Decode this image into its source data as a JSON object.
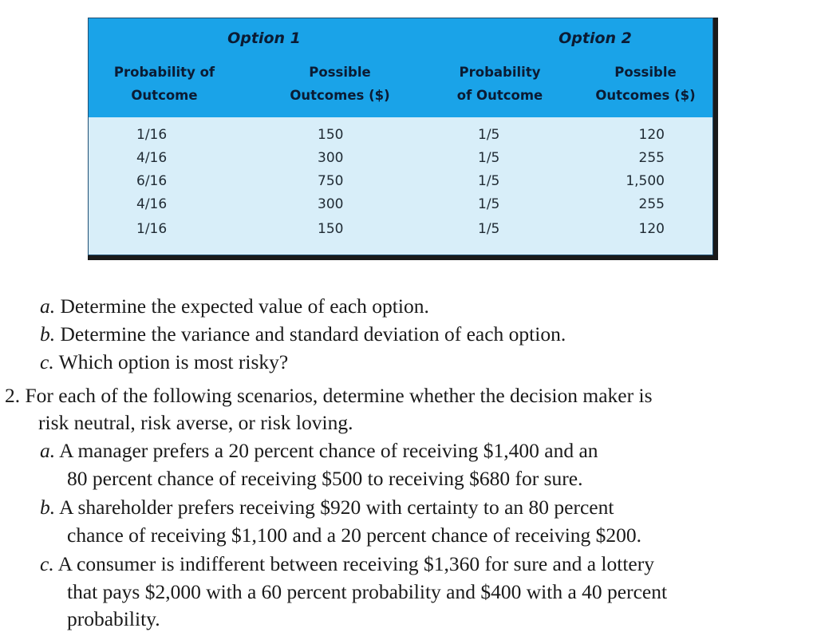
{
  "table": {
    "option1_title": "Option 1",
    "option2_title": "Option 2",
    "headers": {
      "col1": [
        "Probability of",
        "Outcome"
      ],
      "col2": [
        "Possible",
        "Outcomes ($)"
      ],
      "col3": [
        "Probability",
        "of Outcome"
      ],
      "col4": [
        "Possible",
        "Outcomes ($)"
      ]
    },
    "rows": [
      [
        "1/16",
        "150",
        "1/5",
        "120"
      ],
      [
        "4/16",
        "300",
        "1/5",
        "255"
      ],
      [
        "6/16",
        "750",
        "1/5",
        "1,500"
      ],
      [
        "4/16",
        "300",
        "1/5",
        "255"
      ],
      [
        "1/16",
        "150",
        "1/5",
        "120"
      ]
    ]
  },
  "questions": {
    "q1": [
      {
        "letter": "a.",
        "lines": [
          "Determine the expected value of each option."
        ]
      },
      {
        "letter": "b.",
        "lines": [
          "Determine the variance and standard deviation of each option."
        ]
      },
      {
        "letter": "c.",
        "lines": [
          "Which option is most risky?"
        ]
      }
    ],
    "q2": {
      "number": "2.",
      "lines": [
        "For each of the following scenarios, determine whether the decision maker is",
        "risk neutral, risk averse, or risk loving."
      ],
      "parts": [
        {
          "letter": "a.",
          "lines": [
            "A manager prefers a 20 percent chance of receiving $1,400 and an",
            "80 percent chance of receiving $500 to receiving $680 for sure."
          ]
        },
        {
          "letter": "b.",
          "lines": [
            "A shareholder prefers receiving $920 with certainty to an 80 percent",
            "chance of receiving $1,100 and a 20 percent chance of receiving $200."
          ]
        },
        {
          "letter": "c.",
          "lines": [
            "A consumer is indifferent between receiving $1,360 for sure and a lottery",
            "that pays $2,000 with a 60 percent probability and $400 with a 40 percent",
            "probability."
          ]
        }
      ]
    }
  }
}
